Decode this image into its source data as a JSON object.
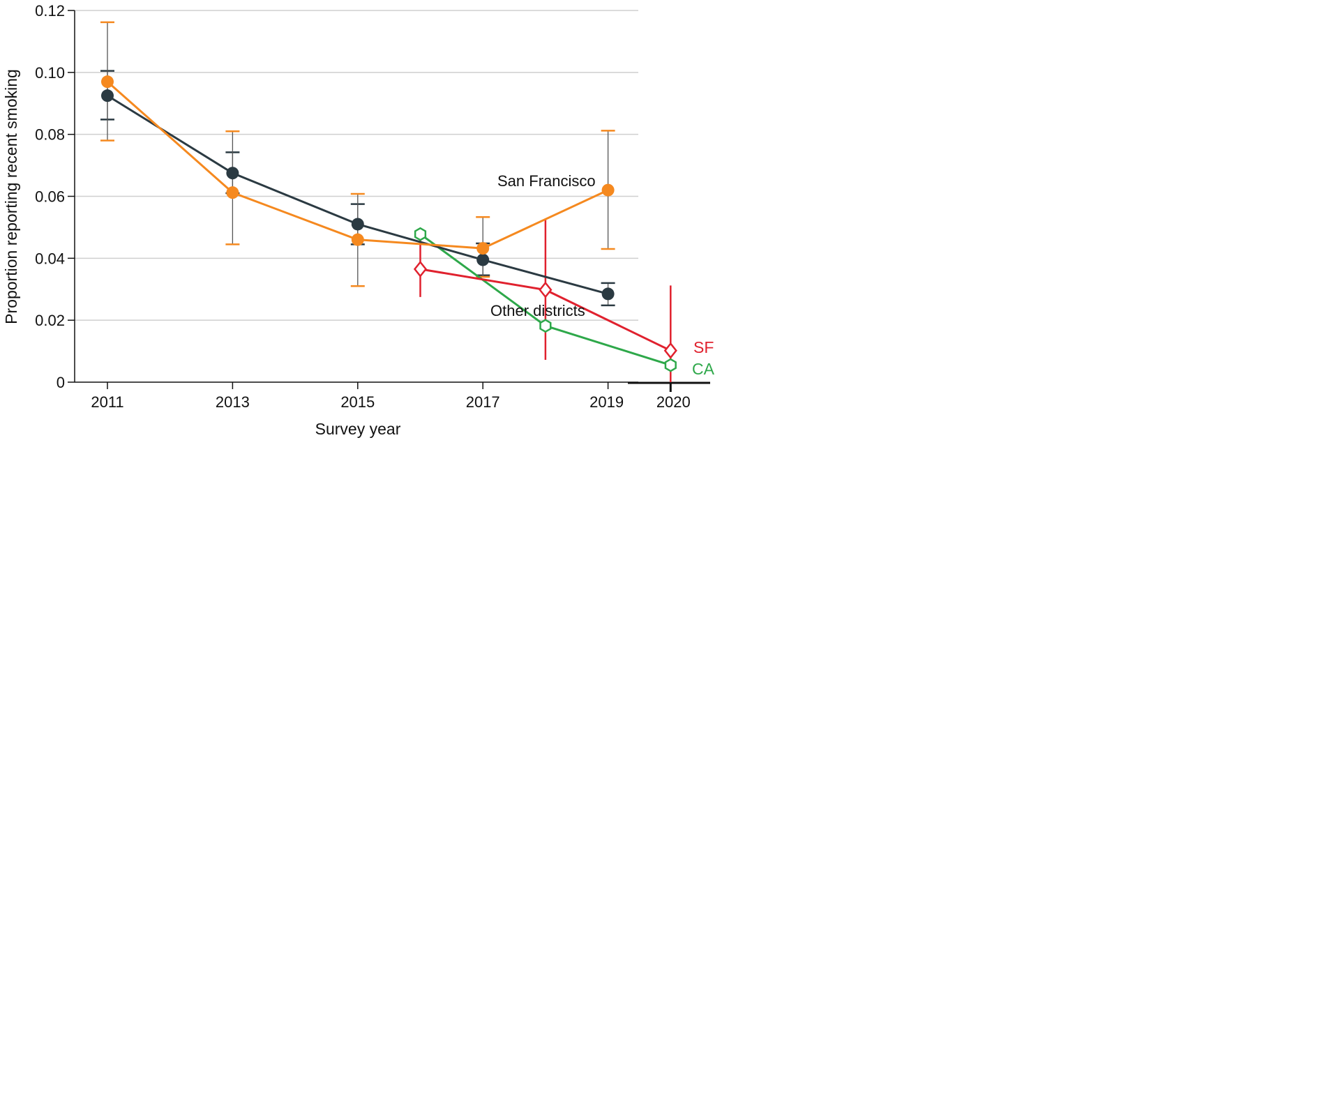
{
  "chart_data": {
    "type": "line",
    "xlabel": "Survey year",
    "ylabel": "Proportion reporting recent smoking",
    "ylim": [
      0,
      0.12
    ],
    "y_ticks": [
      "0",
      "0.02",
      "0.04",
      "0.06",
      "0.08",
      "0.10",
      "0.12"
    ],
    "x_ticks": [
      "2011",
      "2013",
      "2015",
      "2017",
      "2019",
      "2020"
    ],
    "grid": "horizontal",
    "colors": {
      "other_districts": "#2b3a42",
      "san_francisco": "#f5891f",
      "sf": "#e0212e",
      "ca": "#2ea84a",
      "gridline": "#cfcfcf",
      "errorbar": "#555555"
    },
    "series": [
      {
        "key": "other_districts",
        "name": "Other districts",
        "marker": "filled-circle",
        "points": [
          {
            "year": 2011,
            "value": 0.0925,
            "lower": 0.0848,
            "upper": 0.1005
          },
          {
            "year": 2013,
            "value": 0.0675,
            "lower": 0.061,
            "upper": 0.0742
          },
          {
            "year": 2015,
            "value": 0.051,
            "lower": 0.0445,
            "upper": 0.0575
          },
          {
            "year": 2017,
            "value": 0.0395,
            "lower": 0.0345,
            "upper": 0.0448
          },
          {
            "year": 2019,
            "value": 0.0285,
            "lower": 0.0248,
            "upper": 0.032
          }
        ]
      },
      {
        "key": "san_francisco",
        "name": "San Francisco",
        "marker": "filled-circle",
        "points": [
          {
            "year": 2011,
            "value": 0.097,
            "lower": 0.078,
            "upper": 0.1162
          },
          {
            "year": 2013,
            "value": 0.0612,
            "lower": 0.0445,
            "upper": 0.081
          },
          {
            "year": 2015,
            "value": 0.046,
            "lower": 0.031,
            "upper": 0.0608
          },
          {
            "year": 2017,
            "value": 0.0432,
            "lower": 0.034,
            "upper": 0.0533
          },
          {
            "year": 2019,
            "value": 0.062,
            "lower": 0.043,
            "upper": 0.0812
          }
        ]
      },
      {
        "key": "sf",
        "name": "SF",
        "marker": "open-diamond",
        "points": [
          {
            "year": 2016,
            "value": 0.0365,
            "lower": 0.0275,
            "upper": 0.046
          },
          {
            "year": 2018,
            "value": 0.0298,
            "lower": 0.0072,
            "upper": 0.0525
          },
          {
            "year": 2020,
            "value": 0.0102,
            "lower": 0.0,
            "upper": 0.0312
          }
        ]
      },
      {
        "key": "ca",
        "name": "CA",
        "marker": "open-hexagon",
        "points": [
          {
            "year": 2016,
            "value": 0.0478
          },
          {
            "year": 2018,
            "value": 0.0182
          },
          {
            "year": 2020,
            "value": 0.0055
          }
        ]
      }
    ],
    "annotations": [
      {
        "text": "San Francisco",
        "series": "san_francisco"
      },
      {
        "text": "Other districts",
        "series": "other_districts"
      },
      {
        "text": "SF",
        "series": "sf"
      },
      {
        "text": "CA",
        "series": "ca"
      }
    ]
  }
}
